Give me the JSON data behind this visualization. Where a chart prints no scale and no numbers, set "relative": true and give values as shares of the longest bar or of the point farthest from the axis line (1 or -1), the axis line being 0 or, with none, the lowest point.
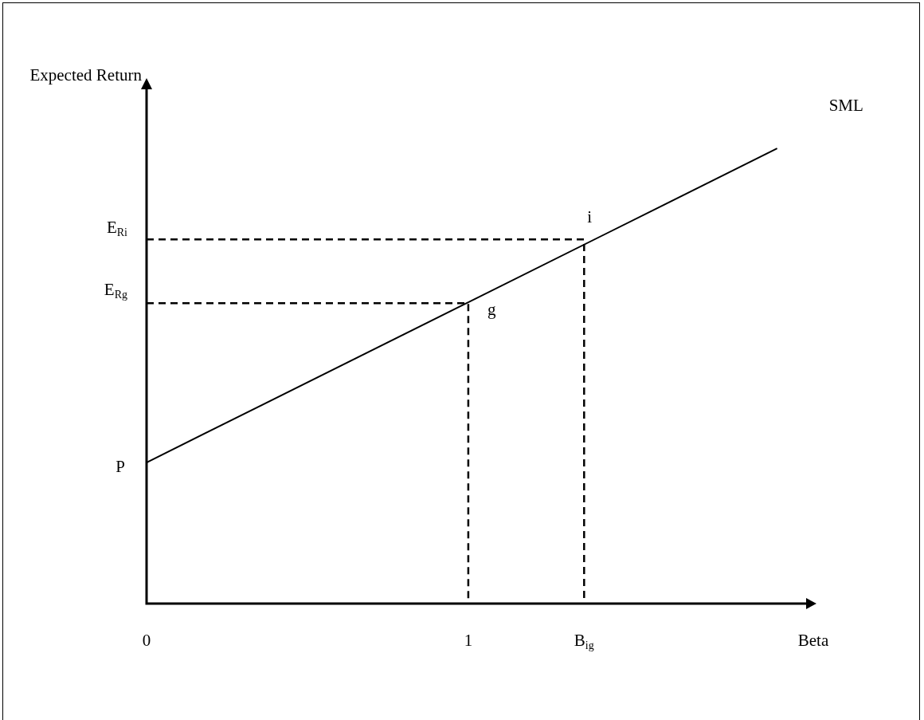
{
  "chart_data": {
    "type": "line",
    "relative": true,
    "xlabel": "Beta",
    "ylabel": "Expected Return",
    "x": [
      0,
      1.96
    ],
    "xlim": [
      0,
      2.05
    ],
    "xticks": [
      0,
      1,
      {
        "value": 1.36,
        "label": "B$_{ig}$"
      }
    ],
    "marker": "none",
    "series": [
      {
        "name": "SML",
        "color": "#000000",
        "values": [
          0.31,
          1.0
        ]
      },
      {
        "color": "#000000",
        "line_style": "dashed",
        "x": [
          0,
          1,
          1
        ],
        "values": [
          0.66,
          0.66,
          0
        ]
      },
      {
        "color": "#000000",
        "line_style": "dashed",
        "x": [
          0,
          1.36,
          1.36
        ],
        "values": [
          0.8,
          0.8,
          0
        ]
      }
    ],
    "annotations": [
      {
        "text": "P",
        "x": 0,
        "y": 0.31
      },
      {
        "text": "E$_{Rg}$",
        "x": 0,
        "y": 0.66
      },
      {
        "text": "E$_{Ri}$",
        "x": 0,
        "y": 0.8
      },
      {
        "text": "g",
        "x": 1,
        "y": 0.66
      },
      {
        "text": "i",
        "x": 1.36,
        "y": 0.8
      }
    ]
  }
}
